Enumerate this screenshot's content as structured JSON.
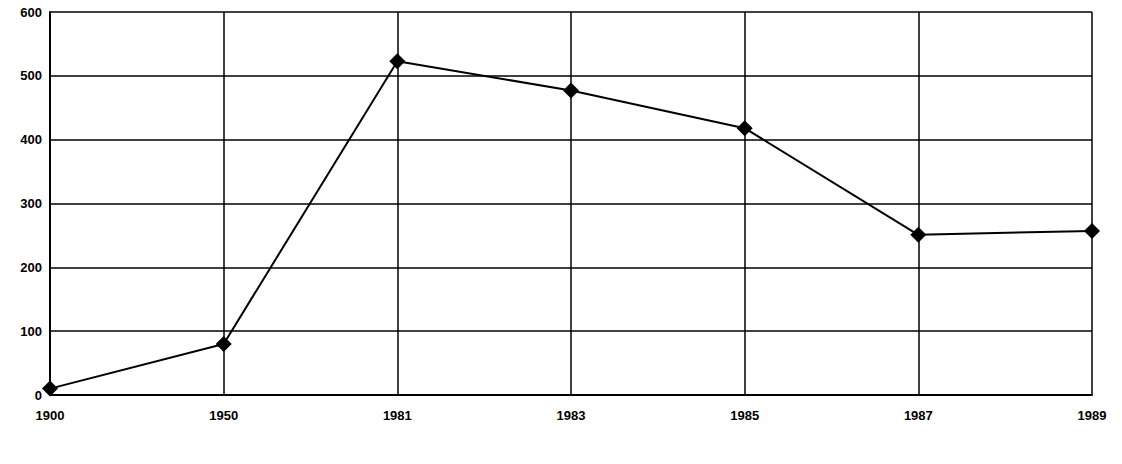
{
  "chart_data": {
    "type": "line",
    "categories": [
      "1900",
      "1950",
      "1981",
      "1983",
      "1985",
      "1987",
      "1989"
    ],
    "values": [
      10,
      80,
      523,
      477,
      418,
      251,
      257
    ],
    "color": "#000000",
    "marker": "diamond",
    "line_style": "solid",
    "ylim": [
      0,
      600
    ],
    "yticks": [
      0,
      100,
      200,
      300,
      400,
      500,
      600
    ],
    "grid": true
  }
}
